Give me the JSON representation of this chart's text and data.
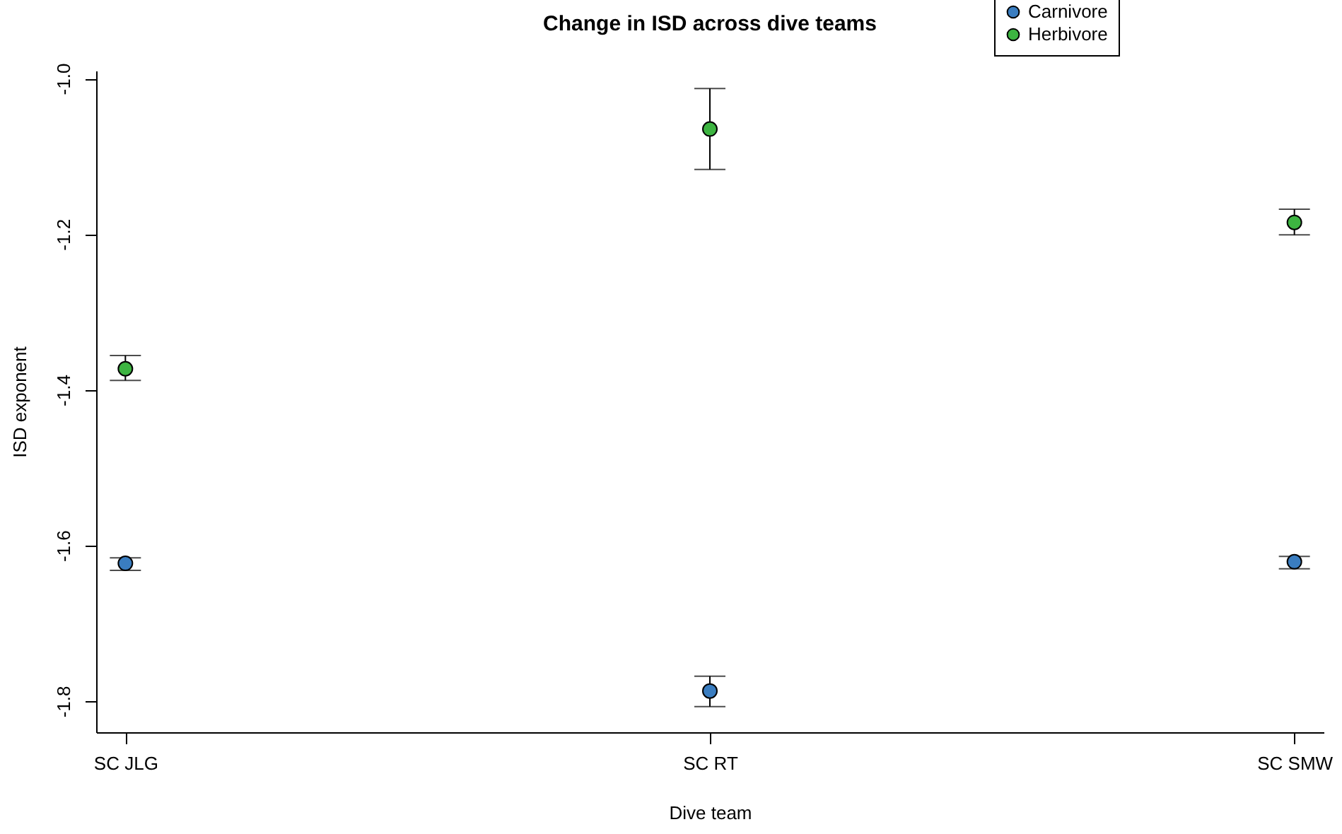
{
  "chart_data": {
    "type": "scatter",
    "title": "Change in ISD across dive teams",
    "xlabel": "Dive team",
    "ylabel": "ISD exponent",
    "categories": [
      "SC JLG",
      "SC RT",
      "SC SMW"
    ],
    "series": [
      {
        "name": "Carnivore",
        "color": "#3a7dc0",
        "values": [
          -1.623,
          -1.787,
          -1.621
        ],
        "errors": [
          [
            -1.632,
            -1.616
          ],
          [
            -1.807,
            -1.768
          ],
          [
            -1.63,
            -1.614
          ]
        ]
      },
      {
        "name": "Herbivore",
        "color": "#3db441",
        "values": [
          -1.373,
          -1.065,
          -1.185
        ],
        "errors": [
          [
            -1.388,
            -1.356
          ],
          [
            -1.117,
            -1.013
          ],
          [
            -1.201,
            -1.168
          ]
        ]
      }
    ],
    "ylim": [
      -1.84,
      -0.99
    ],
    "yticks": [
      -1.8,
      -1.6,
      -1.4,
      -1.2,
      {
        "value": -1,
        "label": "-1.0"
      }
    ],
    "grid": false,
    "legend": "top right",
    "marker": "circle"
  }
}
